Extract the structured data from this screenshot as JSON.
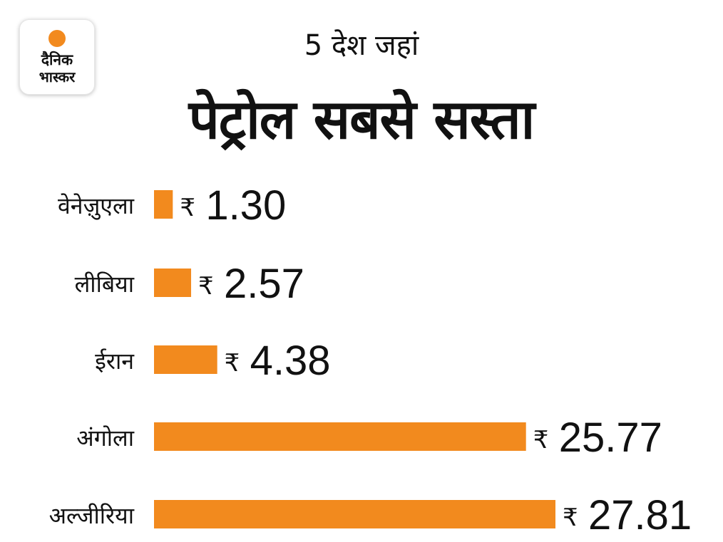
{
  "brand": {
    "line1": "दैनिक",
    "line2": "भास्कर",
    "sun_color": "#f28a1e"
  },
  "header": {
    "subtitle": "5 देश जहां",
    "title": "पेट्रोल सबसे सस्ता"
  },
  "chart_data": {
    "type": "bar",
    "orientation": "horizontal",
    "title": "पेट्रोल सबसे सस्ता",
    "subtitle": "5 देश जहां",
    "categories": [
      "वेनेज़ुएला",
      "लीबिया",
      "ईरान",
      "अंगोला",
      "अल्जीरिया"
    ],
    "values": [
      1.3,
      2.57,
      4.38,
      25.77,
      27.81
    ],
    "value_labels": [
      "1.30",
      "2.57",
      "4.38",
      "25.77",
      "27.81"
    ],
    "currency_symbol": "₹",
    "bar_color": "#f28a1e",
    "xlim": [
      0,
      27.81
    ],
    "grid": false,
    "legend": "none"
  }
}
